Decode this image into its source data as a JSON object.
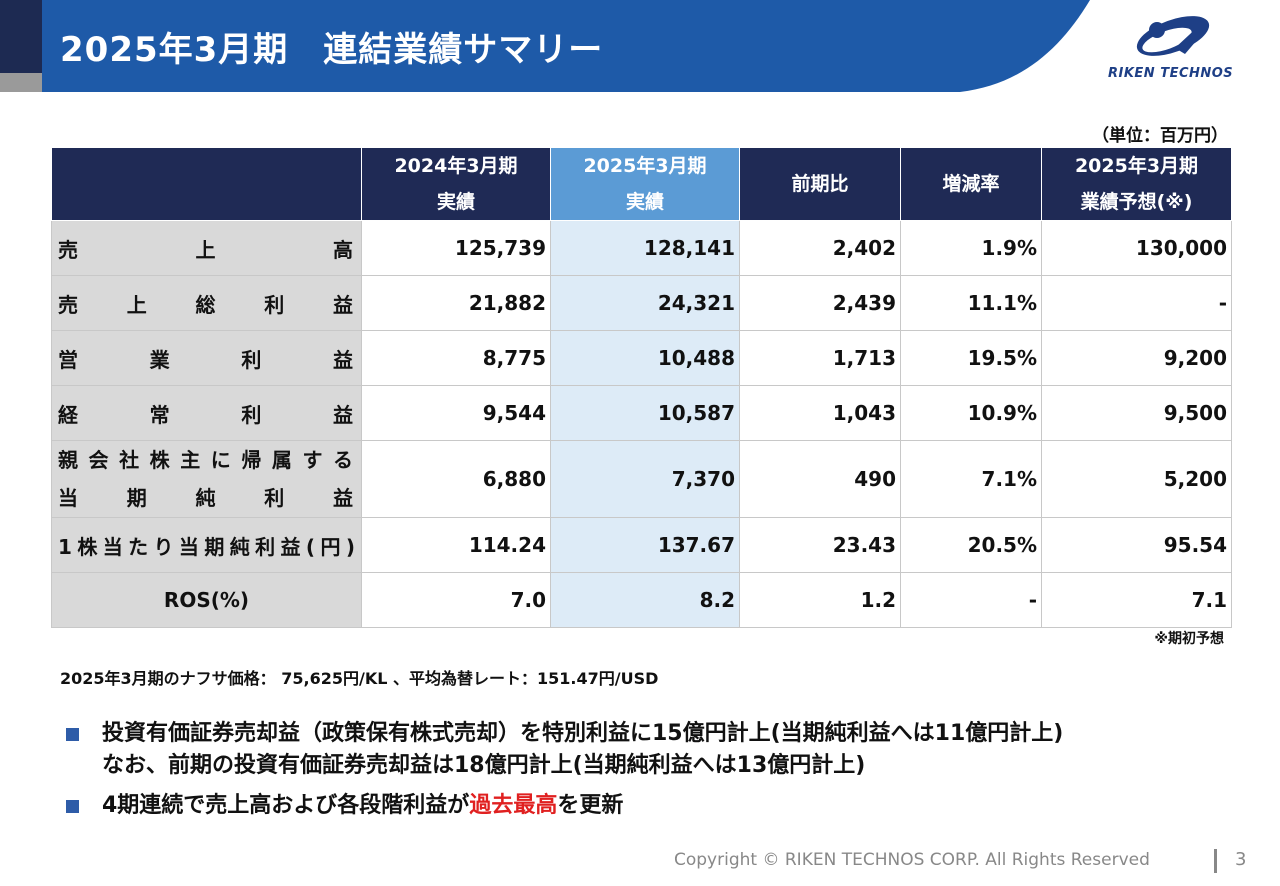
{
  "header": {
    "title": "2025年3月期　連結業績サマリー",
    "logo_text": "RIKEN TECHNOS",
    "band_color": "#1e5aa8"
  },
  "unit_label": "（単位：百万円）",
  "table": {
    "columns": [
      {
        "line1": "2024年3月期",
        "line2": "実績"
      },
      {
        "line1": "2025年3月期",
        "line2": "実績"
      },
      {
        "line1": "前期比",
        "line2": ""
      },
      {
        "line1": "増減率",
        "line2": ""
      },
      {
        "line1": "2025年3月期",
        "line2": "業績予想(※)"
      }
    ],
    "rows": [
      {
        "label": "売上高",
        "values": [
          "125,739",
          "128,141",
          "2,402",
          "1.9%",
          "130,000"
        ]
      },
      {
        "label": "売上総利益",
        "values": [
          "21,882",
          "24,321",
          "2,439",
          "11.1%",
          "-"
        ]
      },
      {
        "label": "営業利益",
        "values": [
          "8,775",
          "10,488",
          "1,713",
          "19.5%",
          "9,200"
        ]
      },
      {
        "label": "経常利益",
        "values": [
          "9,544",
          "10,587",
          "1,043",
          "10.9%",
          "9,500"
        ]
      },
      {
        "label_line1": "親会社株主に帰属する",
        "label_line2": "当期純利益",
        "values": [
          "6,880",
          "7,370",
          "490",
          "7.1%",
          "5,200"
        ]
      },
      {
        "label": "1株当たり当期純利益(円)",
        "values": [
          "114.24",
          "137.67",
          "23.43",
          "20.5%",
          "95.54"
        ]
      },
      {
        "label": "ROS(%)",
        "values": [
          "7.0",
          "8.2",
          "1.2",
          "-",
          "7.1"
        ]
      }
    ]
  },
  "footnote": "※期初予想",
  "naphtha": "2025年3月期のナフサ価格： 75,625円/KL 、平均為替レート：151.47円/USD",
  "bullets": [
    {
      "line1": "投資有価証券売却益（政策保有株式売却）を特別利益に15億円計上(当期純利益へは11億円計上)",
      "line2": "なお、前期の投資有価証券売却益は18億円計上(当期純利益へは13億円計上)"
    },
    {
      "prefix": "4期連続で売上高および各段階利益が",
      "highlight": "過去最高",
      "suffix": "を更新"
    }
  ],
  "colors": {
    "accent_red": "#e02020",
    "bullet": "#2e5ca8",
    "header_dark": "#1f2a55",
    "highlight_col": "#5b9bd5"
  },
  "footer": {
    "copyright": "Copyright © RIKEN TECHNOS CORP. All Rights Reserved",
    "page": "3"
  }
}
